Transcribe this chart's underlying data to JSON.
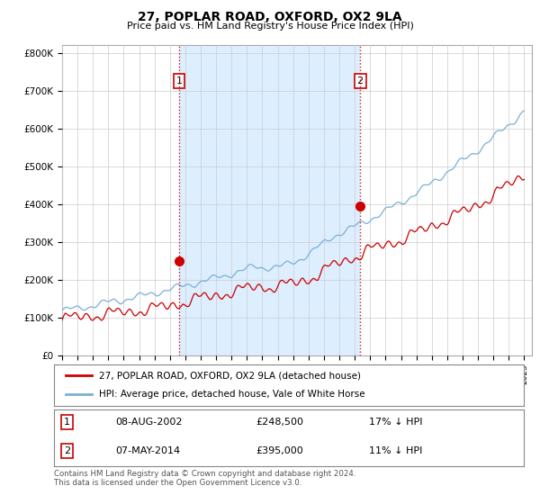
{
  "title": "27, POPLAR ROAD, OXFORD, OX2 9LA",
  "subtitle": "Price paid vs. HM Land Registry's House Price Index (HPI)",
  "ylabel_ticks": [
    "£0",
    "£100K",
    "£200K",
    "£300K",
    "£400K",
    "£500K",
    "£600K",
    "£700K",
    "£800K"
  ],
  "ytick_vals": [
    0,
    100000,
    200000,
    300000,
    400000,
    500000,
    600000,
    700000,
    800000
  ],
  "ylim": [
    0,
    820000
  ],
  "xlim_start": 1995.0,
  "xlim_end": 2025.5,
  "red_line_color": "#cc0000",
  "blue_line_color": "#7ab0d4",
  "shade_color": "#ddeeff",
  "marker_color": "#cc0000",
  "transaction1": {
    "date_num": 2002.6,
    "price": 248500,
    "label": "1",
    "date_str": "08-AUG-2002",
    "pct": "17% ↓ HPI"
  },
  "transaction2": {
    "date_num": 2014.35,
    "price": 395000,
    "label": "2",
    "date_str": "07-MAY-2014",
    "pct": "11% ↓ HPI"
  },
  "legend_line1": "27, POPLAR ROAD, OXFORD, OX2 9LA (detached house)",
  "legend_line2": "HPI: Average price, detached house, Vale of White Horse",
  "footer1": "Contains HM Land Registry data © Crown copyright and database right 2024.",
  "footer2": "This data is licensed under the Open Government Licence v3.0.",
  "background_color": "#ffffff",
  "grid_color": "#cccccc"
}
